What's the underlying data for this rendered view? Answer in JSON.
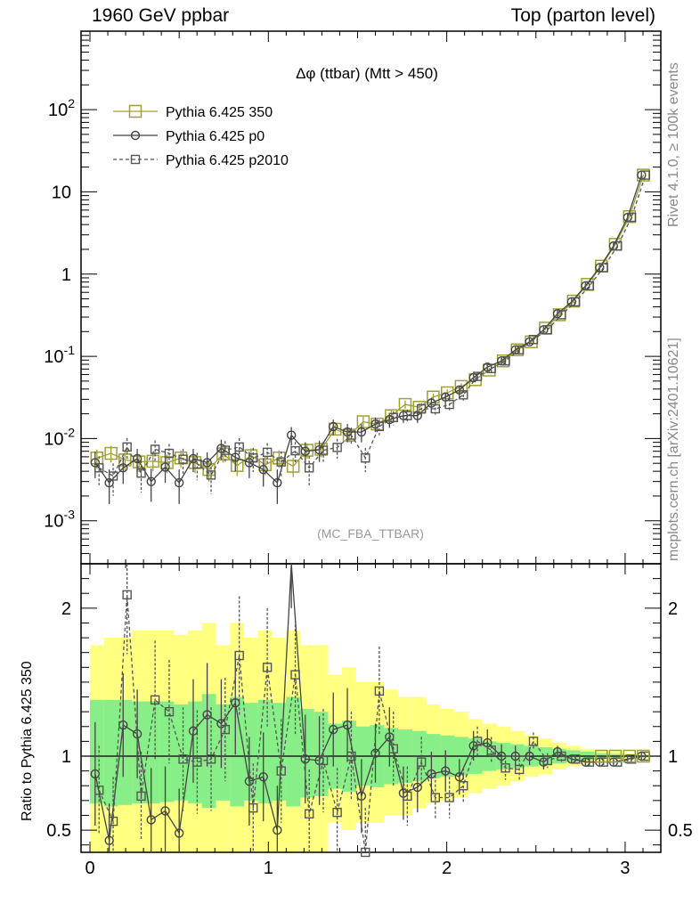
{
  "header": {
    "left": "1960 GeV ppbar",
    "right": "Top (parton level)"
  },
  "side_labels": {
    "rivet": "Rivet 4.1.0, ≥ 100k events",
    "mcplots": "mcplots.cern.ch [arXiv:2401.10621]"
  },
  "chart_data": [
    {
      "type": "line",
      "panel": "main",
      "title": "Δφ (ttbar) (Mtt > 450)",
      "analysis": "(MC_FBA_TTBAR)",
      "yscale": "log",
      "xlim": [
        -0.05,
        3.2
      ],
      "ylim": [
        0.0003,
        900
      ],
      "ytick_labels": [
        "10^-3",
        "10^-2",
        "10^-1",
        "1",
        "10",
        "10^2"
      ],
      "legend": [
        {
          "name": "Pythia 6.425 350",
          "color": "#a0a030",
          "marker": "square-large",
          "dash": "solid"
        },
        {
          "name": "Pythia 6.425 p0",
          "color": "#444444",
          "marker": "circle",
          "dash": "solid"
        },
        {
          "name": "Pythia 6.425 p2010",
          "color": "#555555",
          "marker": "square-small",
          "dash": "dashed"
        }
      ],
      "x": [
        0.039,
        0.118,
        0.196,
        0.275,
        0.353,
        0.432,
        0.51,
        0.589,
        0.667,
        0.746,
        0.825,
        0.903,
        0.982,
        1.06,
        1.139,
        1.217,
        1.296,
        1.374,
        1.453,
        1.532,
        1.61,
        1.689,
        1.767,
        1.846,
        1.924,
        2.003,
        2.081,
        2.16,
        2.238,
        2.317,
        2.395,
        2.474,
        2.553,
        2.631,
        2.71,
        2.788,
        2.867,
        2.945,
        3.024,
        3.102
      ],
      "series": [
        {
          "name": "Pythia 6.425 350",
          "values": [
            0.0058,
            0.0066,
            0.0055,
            0.0052,
            0.0053,
            0.0051,
            0.0058,
            0.0051,
            0.0042,
            0.0065,
            0.0047,
            0.0062,
            0.0048,
            0.0058,
            0.0046,
            0.0072,
            0.0074,
            0.013,
            0.011,
            0.016,
            0.015,
            0.019,
            0.026,
            0.024,
            0.032,
            0.036,
            0.043,
            0.052,
            0.068,
            0.088,
            0.12,
            0.15,
            0.22,
            0.32,
            0.47,
            0.75,
            1.25,
            2.3,
            5.0,
            16.0
          ],
          "errors": [
            0.0015,
            0.0015,
            0.0015,
            0.0013,
            0.0013,
            0.0013,
            0.0014,
            0.0013,
            0.0012,
            0.0014,
            0.0012,
            0.0014,
            0.0012,
            0.0014,
            0.0012,
            0.0015,
            0.0015,
            0.002,
            0.002,
            0.0025,
            0.0025,
            0.003,
            0.003,
            0.003,
            0.003,
            0.004,
            0.004,
            0.004,
            0.005,
            0.006,
            0.008,
            0.009,
            0.012,
            0.015,
            0.02,
            0.03,
            0.04,
            0.07,
            0.12,
            0.3
          ]
        },
        {
          "name": "Pythia 6.425 p0",
          "values": [
            0.0051,
            0.0029,
            0.0044,
            0.0057,
            0.003,
            0.0045,
            0.0029,
            0.0057,
            0.0051,
            0.0076,
            0.0059,
            0.0051,
            0.0042,
            0.0029,
            0.011,
            0.007,
            0.0073,
            0.014,
            0.012,
            0.012,
            0.015,
            0.017,
            0.019,
            0.019,
            0.027,
            0.032,
            0.039,
            0.055,
            0.074,
            0.088,
            0.12,
            0.15,
            0.21,
            0.33,
            0.46,
            0.72,
            1.2,
            2.2,
            4.9,
            16.0
          ],
          "errors": [
            0.0018,
            0.0013,
            0.0016,
            0.0018,
            0.0013,
            0.0016,
            0.0013,
            0.0018,
            0.0017,
            0.0021,
            0.0019,
            0.0018,
            0.0016,
            0.0013,
            0.0028,
            0.002,
            0.0021,
            0.003,
            0.003,
            0.003,
            0.003,
            0.0035,
            0.0035,
            0.0035,
            0.004,
            0.0045,
            0.005,
            0.006,
            0.007,
            0.008,
            0.01,
            0.011,
            0.014,
            0.018,
            0.022,
            0.03,
            0.04,
            0.07,
            0.12,
            0.3
          ]
        },
        {
          "name": "Pythia 6.425 p2010",
          "values": [
            0.0044,
            0.0035,
            0.0079,
            0.0038,
            0.0074,
            0.0066,
            0.0056,
            0.0049,
            0.0036,
            0.0072,
            0.0079,
            0.0058,
            0.0068,
            0.0052,
            0.0071,
            0.0044,
            0.0072,
            0.0078,
            0.011,
            0.0058,
            0.014,
            0.018,
            0.019,
            0.023,
            0.023,
            0.026,
            0.034,
            0.057,
            0.071,
            0.088,
            0.12,
            0.16,
            0.21,
            0.32,
            0.46,
            0.72,
            1.2,
            2.2,
            4.9,
            16.0
          ],
          "errors": [
            0.0017,
            0.0015,
            0.0022,
            0.0016,
            0.0021,
            0.002,
            0.0019,
            0.0018,
            0.0015,
            0.0021,
            0.0022,
            0.0019,
            0.002,
            0.0018,
            0.002,
            0.0017,
            0.002,
            0.0021,
            0.0026,
            0.0019,
            0.003,
            0.0035,
            0.0035,
            0.004,
            0.004,
            0.0045,
            0.005,
            0.006,
            0.007,
            0.008,
            0.01,
            0.012,
            0.014,
            0.018,
            0.022,
            0.03,
            0.04,
            0.07,
            0.12,
            0.3
          ]
        }
      ]
    },
    {
      "type": "line",
      "panel": "ratio",
      "ylabel": "Ratio to Pythia 6.425 350",
      "xlim": [
        -0.05,
        3.2
      ],
      "ylim": [
        0.35,
        2.3
      ],
      "ytick_labels": [
        "0.5",
        "1",
        "2"
      ],
      "xtick_labels": [
        "0",
        "1",
        "2",
        "3"
      ],
      "band_yellow_lo": [
        0.35,
        0.35,
        0.35,
        0.35,
        0.35,
        0.35,
        0.35,
        0.35,
        0.35,
        0.35,
        0.35,
        0.35,
        0.35,
        0.35,
        0.35,
        0.35,
        0.35,
        0.55,
        0.5,
        0.55,
        0.55,
        0.6,
        0.6,
        0.65,
        0.68,
        0.7,
        0.72,
        0.75,
        0.78,
        0.8,
        0.83,
        0.86,
        0.88,
        0.91,
        0.93,
        0.95,
        0.96,
        0.97,
        0.98,
        0.985
      ],
      "band_yellow_hi": [
        1.75,
        1.8,
        1.8,
        1.85,
        1.85,
        1.85,
        1.82,
        1.85,
        1.9,
        1.75,
        1.9,
        1.8,
        1.85,
        1.8,
        1.85,
        1.75,
        1.75,
        1.55,
        1.6,
        1.5,
        1.5,
        1.45,
        1.4,
        1.4,
        1.35,
        1.32,
        1.3,
        1.25,
        1.22,
        1.2,
        1.17,
        1.14,
        1.12,
        1.09,
        1.07,
        1.05,
        1.04,
        1.03,
        1.02,
        1.015
      ],
      "band_green_lo": [
        0.68,
        0.66,
        0.67,
        0.68,
        0.68,
        0.69,
        0.7,
        0.68,
        0.65,
        0.7,
        0.66,
        0.7,
        0.68,
        0.7,
        0.66,
        0.72,
        0.73,
        0.78,
        0.76,
        0.8,
        0.79,
        0.81,
        0.82,
        0.83,
        0.85,
        0.86,
        0.87,
        0.88,
        0.9,
        0.91,
        0.92,
        0.93,
        0.94,
        0.95,
        0.96,
        0.97,
        0.98,
        0.985,
        0.99,
        0.992
      ],
      "band_green_hi": [
        1.38,
        1.38,
        1.38,
        1.37,
        1.37,
        1.37,
        1.35,
        1.37,
        1.42,
        1.35,
        1.4,
        1.36,
        1.38,
        1.36,
        1.4,
        1.32,
        1.3,
        1.22,
        1.24,
        1.2,
        1.21,
        1.19,
        1.18,
        1.17,
        1.15,
        1.14,
        1.13,
        1.12,
        1.1,
        1.09,
        1.08,
        1.07,
        1.06,
        1.05,
        1.04,
        1.03,
        1.02,
        1.015,
        1.01,
        1.008
      ],
      "series": [
        {
          "name": "Pythia 6.425 p0",
          "values": [
            0.88,
            0.43,
            1.21,
            1.15,
            0.57,
            0.63,
            0.48,
            1.17,
            1.28,
            1.22,
            1.36,
            0.83,
            0.86,
            0.5,
            2.4,
            0.98,
            0.97,
            1.18,
            1.21,
            0.73,
            1.02,
            1.13,
            0.75,
            0.79,
            0.88,
            0.9,
            0.86,
            1.07,
            1.09,
            1.0,
            1.0,
            1.0,
            0.96,
            1.03,
            0.98,
            0.96,
            0.96,
            0.96,
            0.98,
            1.0
          ],
          "errors": [
            0.35,
            0.25,
            0.35,
            0.3,
            0.35,
            0.3,
            0.3,
            0.35,
            0.35,
            0.3,
            0.35,
            0.3,
            0.3,
            0.3,
            0.4,
            0.3,
            0.3,
            0.25,
            0.25,
            0.25,
            0.2,
            0.2,
            0.18,
            0.17,
            0.15,
            0.14,
            0.12,
            0.1,
            0.09,
            0.08,
            0.07,
            0.06,
            0.05,
            0.04,
            0.03,
            0.025,
            0.02,
            0.015,
            0.01,
            0.005
          ]
        },
        {
          "name": "Pythia 6.425 p2010",
          "values": [
            0.77,
            0.56,
            2.09,
            0.73,
            1.38,
            1.3,
            0.98,
            0.96,
            0.98,
            1.18,
            1.68,
            0.65,
            1.6,
            0.9,
            1.55,
            0.61,
            0.97,
            0.62,
            1.0,
            0.35,
            1.44,
            1.05,
            0.73,
            0.96,
            0.72,
            0.72,
            0.8,
            1.1,
            1.04,
            0.92,
            0.91,
            1.1,
            0.97,
            1.0,
            0.98,
            0.96,
            0.96,
            0.96,
            0.98,
            1.0
          ],
          "errors": [
            0.3,
            0.3,
            0.4,
            0.3,
            0.4,
            0.35,
            0.35,
            0.35,
            0.35,
            0.35,
            0.4,
            0.3,
            0.4,
            0.35,
            0.4,
            0.3,
            0.35,
            0.3,
            0.3,
            0.3,
            0.3,
            0.25,
            0.2,
            0.17,
            0.15,
            0.14,
            0.12,
            0.1,
            0.09,
            0.08,
            0.07,
            0.06,
            0.05,
            0.04,
            0.03,
            0.025,
            0.02,
            0.015,
            0.01,
            0.005
          ]
        }
      ]
    }
  ]
}
